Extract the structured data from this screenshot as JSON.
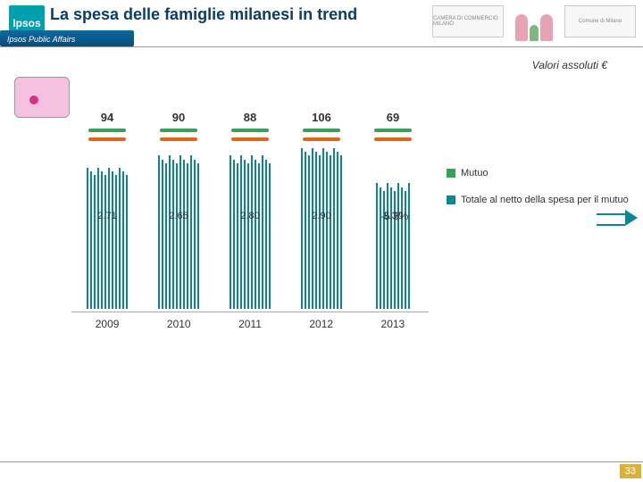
{
  "header": {
    "brand": "Ipsos",
    "banner": "Ipsos Public Affairs",
    "title": "La spesa delle famiglie milanesi in trend",
    "logos": [
      "CAMERA DI COMMERCIO MILANO",
      "",
      "Comune di Milano"
    ]
  },
  "subtitle": "Valori assoluti €",
  "chart": {
    "type": "bar",
    "stripe_color": "#0b8793",
    "cap_colors": [
      "#39a05a",
      "#e36414"
    ],
    "background_color": "#ffffff",
    "bar_max": 110,
    "series": [
      {
        "year": "2009",
        "top": "94",
        "mid": "2.71",
        "stripes": 12,
        "h": 72
      },
      {
        "year": "2010",
        "top": "90",
        "mid": "2.65",
        "stripes": 12,
        "h": 78
      },
      {
        "year": "2011",
        "top": "88",
        "mid": "2.80",
        "stripes": 12,
        "h": 78
      },
      {
        "year": "2012",
        "top": "106",
        "mid": "2.90",
        "stripes": 12,
        "h": 82
      },
      {
        "year": "2013",
        "top": "69",
        "mid": "2.30",
        "stripes": 10,
        "h": 64
      }
    ]
  },
  "legend": {
    "items": [
      {
        "label": "Mutuo",
        "color": "#39a05a"
      },
      {
        "label": "Totale al netto della spesa per il mutuo",
        "color": "#0b8793"
      }
    ]
  },
  "delta": "-5,3%",
  "page_number": "33"
}
